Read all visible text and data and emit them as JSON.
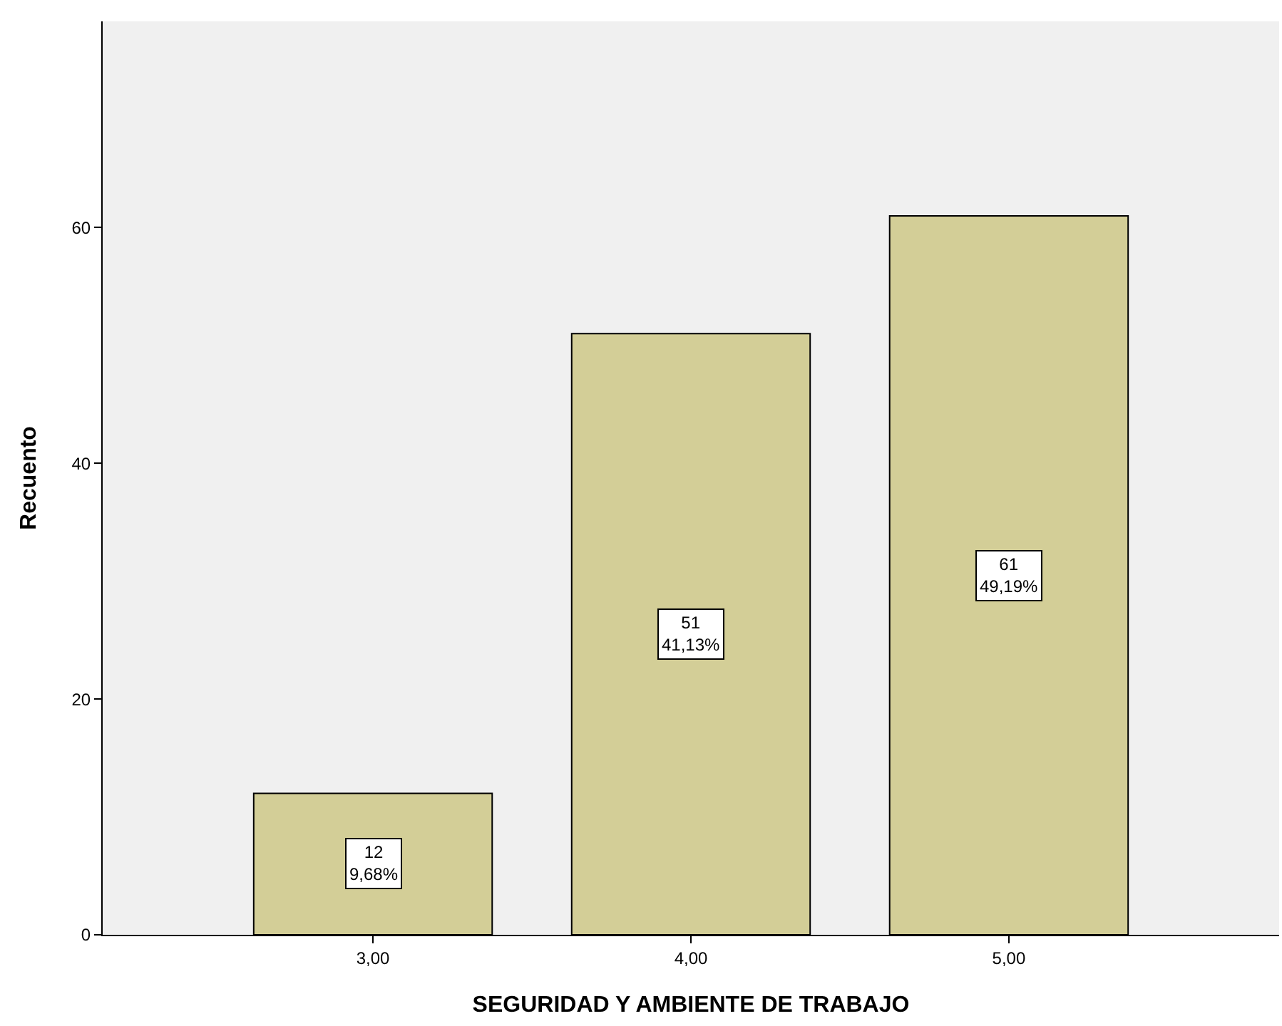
{
  "chart_data": {
    "type": "bar",
    "xlabel": "SEGURIDAD Y AMBIENTE DE TRABAJO",
    "ylabel": "Recuento",
    "categories": [
      "3,00",
      "4,00",
      "5,00"
    ],
    "values": [
      12,
      51,
      61
    ],
    "value_labels": [
      "12\n9,68%",
      "51\n41,13%",
      "61\n49,19%"
    ],
    "color": "#d3ce97",
    "ylim": [
      0,
      77.5
    ],
    "yticks": [
      0,
      20,
      40,
      60
    ],
    "grid": false
  }
}
